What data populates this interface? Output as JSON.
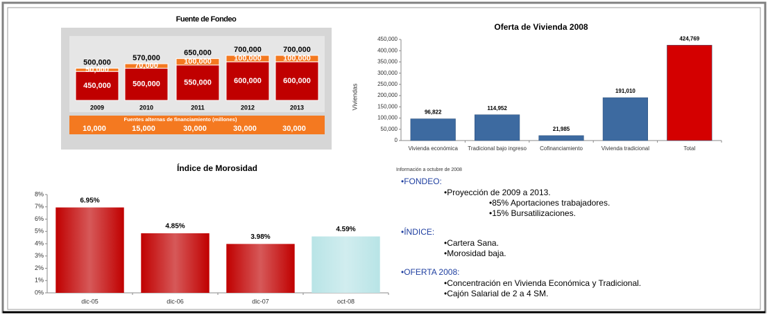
{
  "chart_data": [
    {
      "type": "stacked_bar",
      "title": "Fuente de Fondeo",
      "categories": [
        "2009",
        "2010",
        "2011",
        "2012",
        "2013"
      ],
      "series": [
        {
          "color": "#c00000",
          "values": [
            450000,
            500000,
            550000,
            600000,
            600000
          ],
          "value_labels": [
            "450,000",
            "500,000",
            "550,000",
            "600,000",
            "600,000"
          ]
        },
        {
          "color": "#f47920",
          "values": [
            50000,
            70000,
            100000,
            100000,
            100000
          ],
          "value_labels": [
            "50,000",
            "70,000",
            "100,000",
            "100,000",
            "100,000"
          ]
        }
      ],
      "totals": [
        500000,
        570000,
        650000,
        700000,
        700000
      ],
      "total_labels": [
        "500,000",
        "570,000",
        "650,000",
        "700,000",
        "700,000"
      ],
      "alternas": {
        "title": "Fuentes alternas de financiamiento (millones)",
        "color": "#f47920",
        "values": [
          10000,
          15000,
          30000,
          30000,
          30000
        ],
        "value_labels": [
          "10,000",
          "15,000",
          "30,000",
          "30,000",
          "30,000"
        ]
      }
    },
    {
      "type": "bar",
      "title": "Oferta de Vivienda 2008",
      "ylabel": "Viviendas",
      "categories": [
        "Vivienda económica",
        "Tradicional bajo ingreso",
        "Cofinanciamiento",
        "Vivienda tradicional",
        "Total"
      ],
      "values": [
        96822,
        114952,
        21985,
        191010,
        424769
      ],
      "value_labels": [
        "96,822",
        "114,952",
        "21,985",
        "191,010",
        "424,769"
      ],
      "colors": [
        "#3d6aa0",
        "#3d6aa0",
        "#3d6aa0",
        "#3d6aa0",
        "#d40000"
      ],
      "ylim": [
        0,
        450000
      ],
      "yticks": [
        {
          "value": 0,
          "label": "0"
        },
        {
          "value": 50000,
          "label": "50,000"
        },
        {
          "value": 100000,
          "label": "100,000"
        },
        {
          "value": 150000,
          "label": "150,000"
        },
        {
          "value": 200000,
          "label": "200,000"
        },
        {
          "value": 250000,
          "label": "250,000"
        },
        {
          "value": 300000,
          "label": "300,000"
        },
        {
          "value": 350000,
          "label": "350,000"
        },
        {
          "value": 400000,
          "label": "400,000"
        },
        {
          "value": 450000,
          "label": "450,000"
        }
      ],
      "note": "Información a octubre de 2008"
    },
    {
      "type": "bar",
      "title": "Índice de Morosidad",
      "categories": [
        "dic-05",
        "dic-06",
        "dic-07",
        "oct-08"
      ],
      "values": [
        6.95,
        4.85,
        3.98,
        4.59
      ],
      "value_labels": [
        "6.95%",
        "4.85%",
        "3.98%",
        "4.59%"
      ],
      "colors": [
        "#c00000",
        "#c00000",
        "#c00000",
        "#b8e4e6"
      ],
      "ylim": [
        0,
        8
      ],
      "yticks": [
        {
          "value": 0,
          "label": "0%"
        },
        {
          "value": 1,
          "label": "1%"
        },
        {
          "value": 2,
          "label": "2%"
        },
        {
          "value": 3,
          "label": "3%"
        },
        {
          "value": 4,
          "label": "4%"
        },
        {
          "value": 5,
          "label": "5%"
        },
        {
          "value": 6,
          "label": "6%"
        },
        {
          "value": 7,
          "label": "7%"
        },
        {
          "value": 8,
          "label": "8%"
        }
      ]
    }
  ],
  "notes": [
    {
      "heading": "•FONDEO:",
      "items": [
        {
          "text": "•Proyección de 2009 a 2013.",
          "subitems": [
            "•85% Aportaciones trabajadores.",
            "•15% Bursatilizaciones."
          ]
        }
      ]
    },
    {
      "heading": "•ÍNDICE:",
      "items": [
        {
          "text": "•Cartera Sana."
        },
        {
          "text": "•Morosidad baja."
        }
      ]
    },
    {
      "heading": "•OFERTA 2008:",
      "items": [
        {
          "text": "•Concentración en Vivienda Económica y Tradicional."
        },
        {
          "text": "•Cajón Salarial de 2 a 4 SM."
        }
      ]
    }
  ]
}
